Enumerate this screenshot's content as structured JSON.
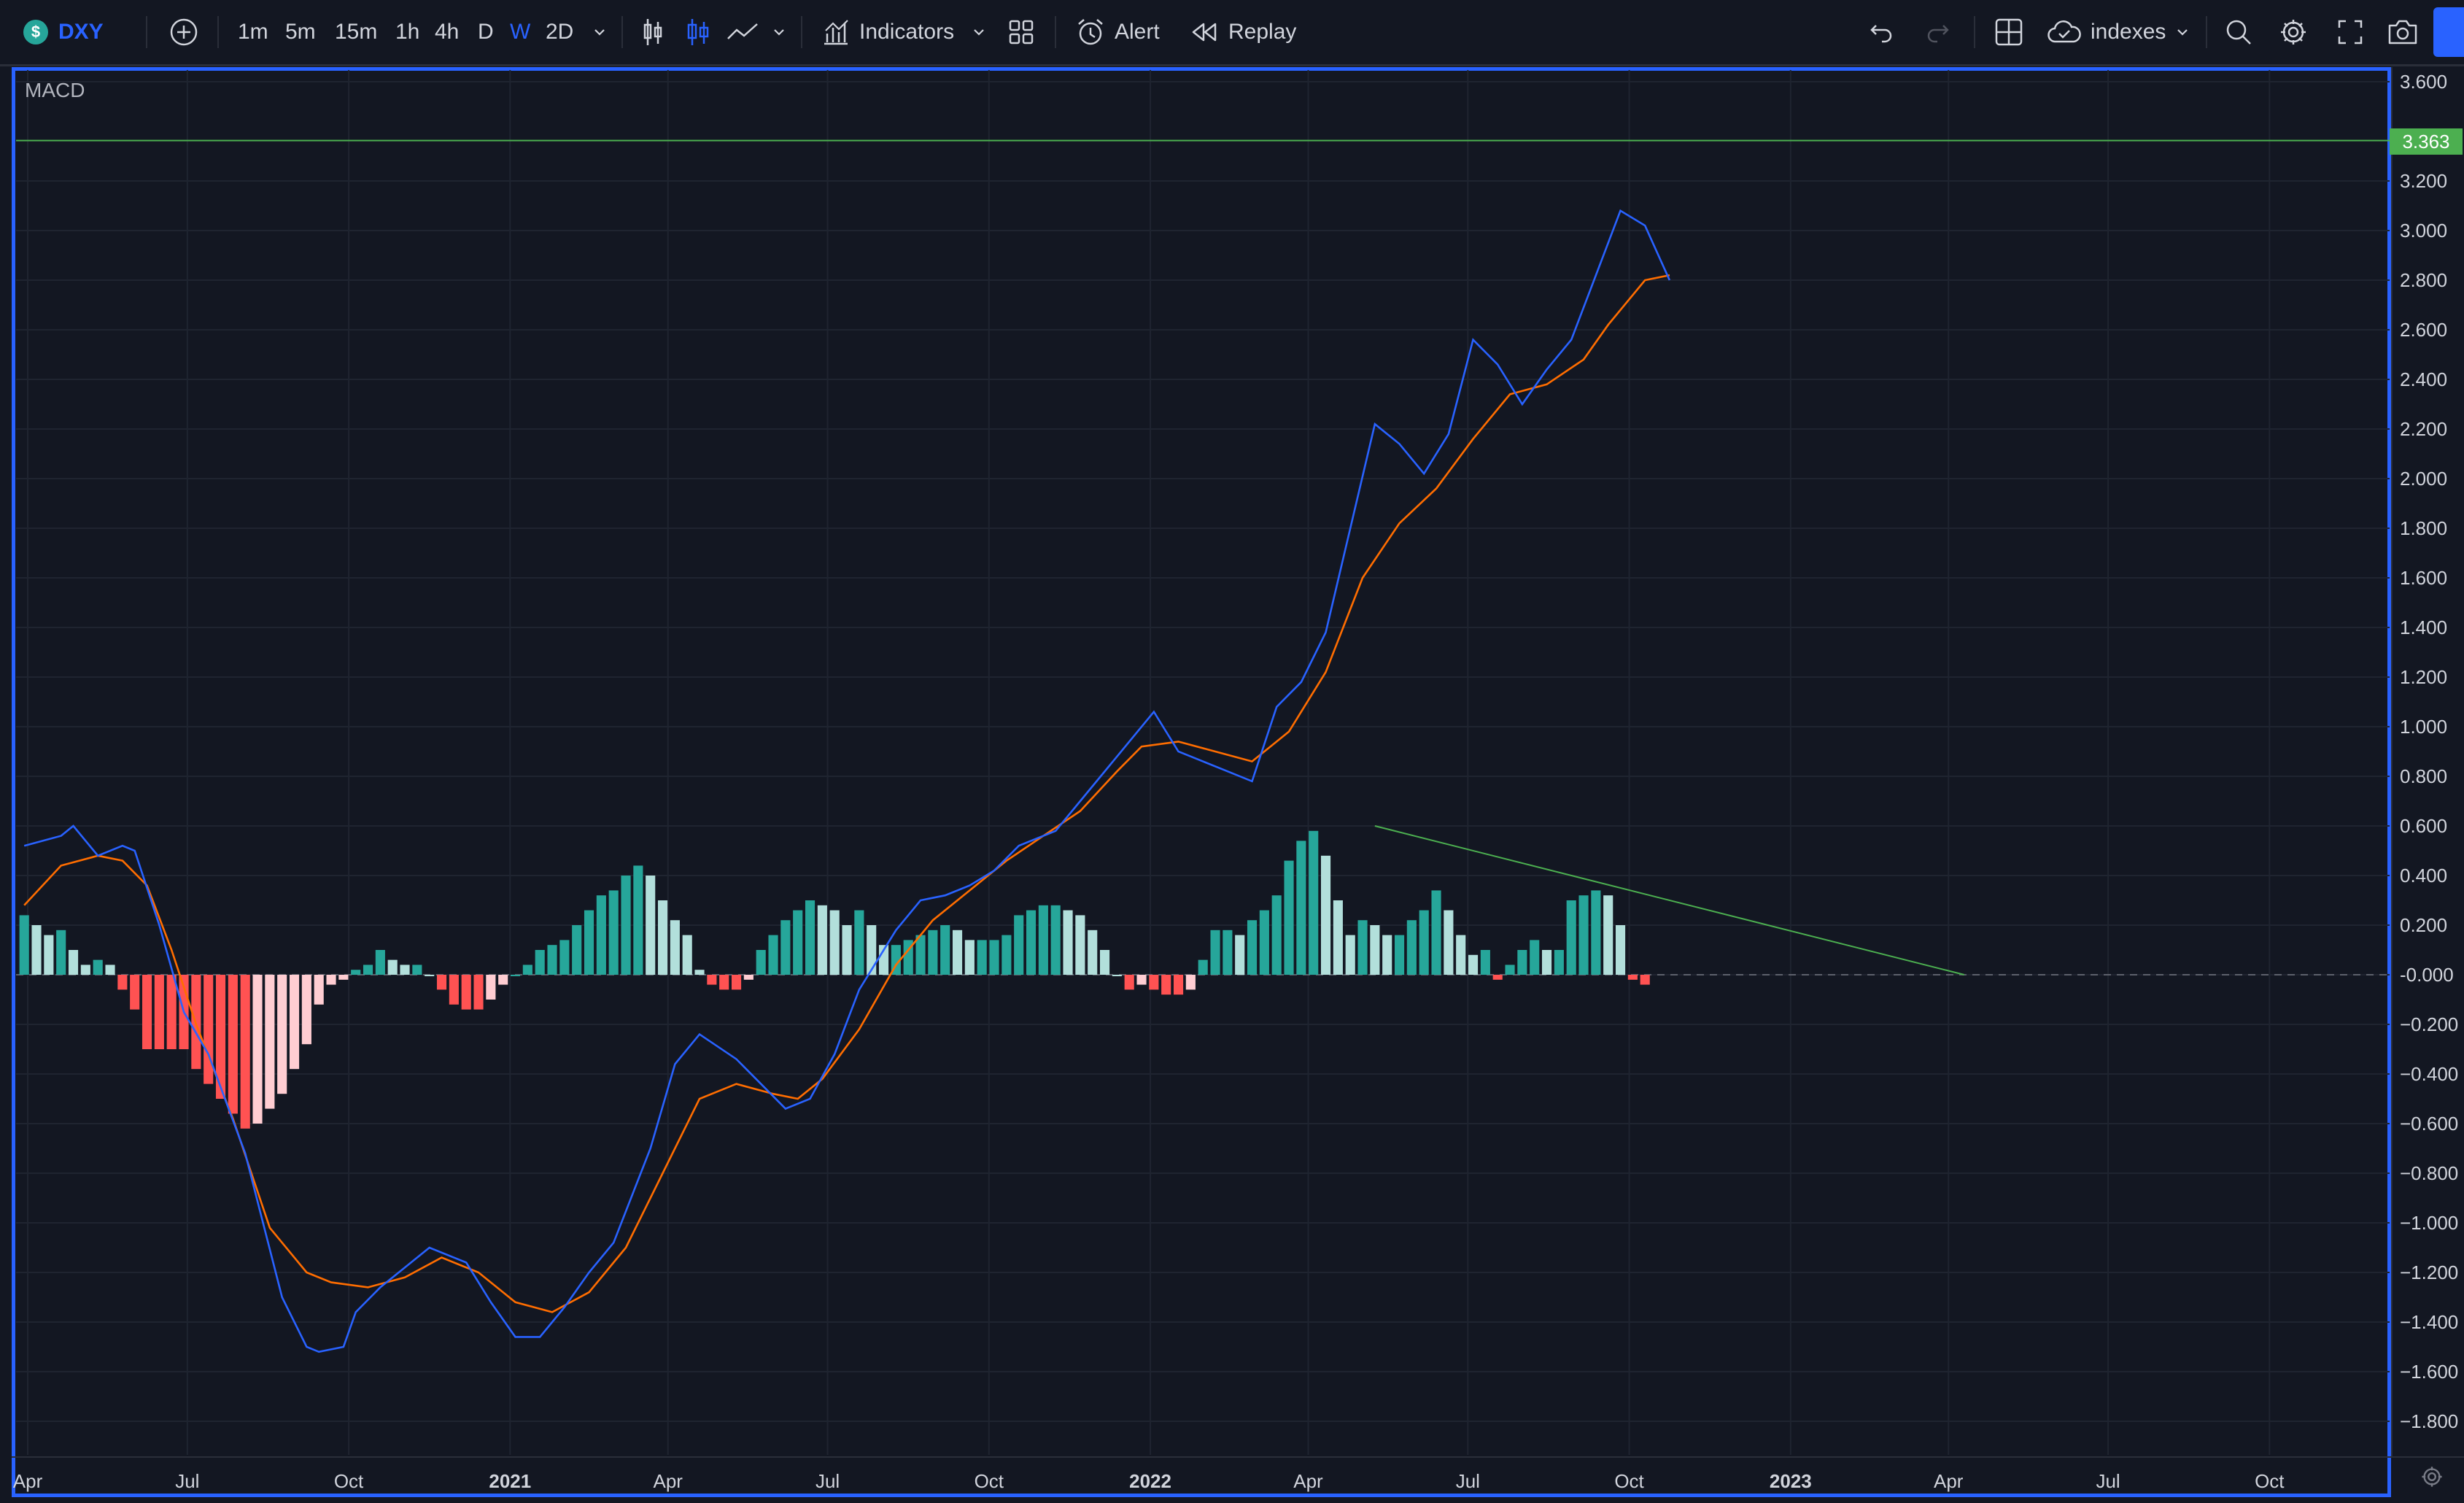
{
  "toolbar": {
    "symbol": "DXY",
    "timeframes": [
      "1m",
      "5m",
      "15m",
      "1h",
      "4h",
      "D",
      "W",
      "2D"
    ],
    "active_timeframe": "W",
    "indicators_label": "Indicators",
    "alert_label": "Alert",
    "replay_label": "Replay",
    "layout_label": "indexes"
  },
  "pane": {
    "indicator_name": "MACD",
    "price_tag": "3.363"
  },
  "y_axis": {
    "labels": [
      "3.600",
      "3.200",
      "3.000",
      "2.800",
      "2.600",
      "2.400",
      "2.200",
      "2.000",
      "1.800",
      "1.600",
      "1.400",
      "1.200",
      "1.000",
      "0.800",
      "0.600",
      "0.400",
      "0.200",
      "-0.000",
      "−0.200",
      "−0.400",
      "−0.600",
      "−0.800",
      "−1.000",
      "−1.200",
      "−1.400",
      "−1.600",
      "−1.800"
    ]
  },
  "x_axis": {
    "labels": [
      {
        "text": "Apr",
        "year": false
      },
      {
        "text": "Jul",
        "year": false
      },
      {
        "text": "Oct",
        "year": false
      },
      {
        "text": "2021",
        "year": true
      },
      {
        "text": "Apr",
        "year": false
      },
      {
        "text": "Jul",
        "year": false
      },
      {
        "text": "Oct",
        "year": false
      },
      {
        "text": "2022",
        "year": true
      },
      {
        "text": "Apr",
        "year": false
      },
      {
        "text": "Jul",
        "year": false
      },
      {
        "text": "Oct",
        "year": false
      },
      {
        "text": "2023",
        "year": true
      },
      {
        "text": "Apr",
        "year": false
      },
      {
        "text": "Jul",
        "year": false
      },
      {
        "text": "Oct",
        "year": false
      }
    ]
  },
  "chart_data": {
    "type": "line",
    "indicator": "MACD",
    "ylim": [
      -1.9,
      3.65
    ],
    "x_range": [
      "2020-04-01",
      "2023-12-01"
    ],
    "horizontal_line": 3.363,
    "macd": [
      [
        "2020-03-30",
        0.52
      ],
      [
        "2020-04-20",
        0.56
      ],
      [
        "2020-04-27",
        0.6
      ],
      [
        "2020-05-11",
        0.48
      ],
      [
        "2020-05-25",
        0.52
      ],
      [
        "2020-06-01",
        0.5
      ],
      [
        "2020-06-15",
        0.2
      ],
      [
        "2020-06-29",
        -0.15
      ],
      [
        "2020-07-13",
        -0.32
      ],
      [
        "2020-08-03",
        -0.72
      ],
      [
        "2020-08-24",
        -1.3
      ],
      [
        "2020-09-07",
        -1.5
      ],
      [
        "2020-09-14",
        -1.52
      ],
      [
        "2020-09-28",
        -1.5
      ],
      [
        "2020-10-05",
        -1.36
      ],
      [
        "2020-10-19",
        -1.26
      ],
      [
        "2020-11-02",
        -1.18
      ],
      [
        "2020-11-16",
        -1.1
      ],
      [
        "2020-12-07",
        -1.16
      ],
      [
        "2020-12-21",
        -1.32
      ],
      [
        "2021-01-04",
        -1.46
      ],
      [
        "2021-01-18",
        -1.46
      ],
      [
        "2021-02-01",
        -1.34
      ],
      [
        "2021-02-15",
        -1.2
      ],
      [
        "2021-03-01",
        -1.08
      ],
      [
        "2021-03-22",
        -0.7
      ],
      [
        "2021-04-05",
        -0.36
      ],
      [
        "2021-04-19",
        -0.24
      ],
      [
        "2021-05-10",
        -0.34
      ],
      [
        "2021-05-24",
        -0.44
      ],
      [
        "2021-06-07",
        -0.54
      ],
      [
        "2021-06-21",
        -0.5
      ],
      [
        "2021-07-05",
        -0.32
      ],
      [
        "2021-07-19",
        -0.06
      ],
      [
        "2021-08-09",
        0.18
      ],
      [
        "2021-08-23",
        0.3
      ],
      [
        "2021-09-06",
        0.32
      ],
      [
        "2021-09-20",
        0.36
      ],
      [
        "2021-10-04",
        0.42
      ],
      [
        "2021-10-18",
        0.52
      ],
      [
        "2021-11-08",
        0.58
      ],
      [
        "2021-11-22",
        0.7
      ],
      [
        "2021-12-13",
        0.88
      ],
      [
        "2022-01-03",
        1.06
      ],
      [
        "2022-01-17",
        0.9
      ],
      [
        "2022-01-31",
        0.86
      ],
      [
        "2022-02-14",
        0.82
      ],
      [
        "2022-02-28",
        0.78
      ],
      [
        "2022-03-14",
        1.08
      ],
      [
        "2022-03-28",
        1.18
      ],
      [
        "2022-04-11",
        1.38
      ],
      [
        "2022-04-25",
        1.8
      ],
      [
        "2022-05-09",
        2.22
      ],
      [
        "2022-05-23",
        2.14
      ],
      [
        "2022-06-06",
        2.02
      ],
      [
        "2022-06-20",
        2.18
      ],
      [
        "2022-07-04",
        2.56
      ],
      [
        "2022-07-18",
        2.46
      ],
      [
        "2022-08-01",
        2.3
      ],
      [
        "2022-08-15",
        2.44
      ],
      [
        "2022-08-29",
        2.56
      ],
      [
        "2022-09-12",
        2.82
      ],
      [
        "2022-09-26",
        3.08
      ],
      [
        "2022-10-10",
        3.02
      ],
      [
        "2022-10-24",
        2.8
      ]
    ],
    "signal": [
      [
        "2020-03-30",
        0.28
      ],
      [
        "2020-04-20",
        0.44
      ],
      [
        "2020-05-11",
        0.48
      ],
      [
        "2020-05-25",
        0.46
      ],
      [
        "2020-06-08",
        0.36
      ],
      [
        "2020-06-22",
        0.1
      ],
      [
        "2020-07-06",
        -0.2
      ],
      [
        "2020-07-27",
        -0.58
      ],
      [
        "2020-08-17",
        -1.02
      ],
      [
        "2020-09-07",
        -1.2
      ],
      [
        "2020-09-21",
        -1.24
      ],
      [
        "2020-10-12",
        -1.26
      ],
      [
        "2020-11-02",
        -1.22
      ],
      [
        "2020-11-23",
        -1.14
      ],
      [
        "2020-12-14",
        -1.2
      ],
      [
        "2021-01-04",
        -1.32
      ],
      [
        "2021-01-25",
        -1.36
      ],
      [
        "2021-02-15",
        -1.28
      ],
      [
        "2021-03-08",
        -1.1
      ],
      [
        "2021-03-29",
        -0.8
      ],
      [
        "2021-04-19",
        -0.5
      ],
      [
        "2021-05-10",
        -0.44
      ],
      [
        "2021-05-31",
        -0.48
      ],
      [
        "2021-06-14",
        -0.5
      ],
      [
        "2021-06-28",
        -0.42
      ],
      [
        "2021-07-19",
        -0.22
      ],
      [
        "2021-08-09",
        0.04
      ],
      [
        "2021-08-30",
        0.22
      ],
      [
        "2021-09-20",
        0.34
      ],
      [
        "2021-10-11",
        0.46
      ],
      [
        "2021-11-01",
        0.56
      ],
      [
        "2021-11-22",
        0.66
      ],
      [
        "2021-12-13",
        0.82
      ],
      [
        "2021-12-27",
        0.92
      ],
      [
        "2022-01-17",
        0.94
      ],
      [
        "2022-02-07",
        0.9
      ],
      [
        "2022-02-28",
        0.86
      ],
      [
        "2022-03-21",
        0.98
      ],
      [
        "2022-04-11",
        1.22
      ],
      [
        "2022-05-02",
        1.6
      ],
      [
        "2022-05-23",
        1.82
      ],
      [
        "2022-06-13",
        1.96
      ],
      [
        "2022-07-04",
        2.16
      ],
      [
        "2022-07-25",
        2.34
      ],
      [
        "2022-08-15",
        2.38
      ],
      [
        "2022-09-05",
        2.48
      ],
      [
        "2022-09-19",
        2.62
      ],
      [
        "2022-10-10",
        2.8
      ],
      [
        "2022-10-24",
        2.82
      ]
    ],
    "histogram_start": "2020-03-30",
    "histogram_interval_days": 7,
    "histogram": [
      0.24,
      0.2,
      0.16,
      0.18,
      0.1,
      0.04,
      0.06,
      0.04,
      -0.06,
      -0.14,
      -0.3,
      -0.3,
      -0.3,
      -0.3,
      -0.38,
      -0.44,
      -0.5,
      -0.56,
      -0.62,
      -0.6,
      -0.54,
      -0.48,
      -0.38,
      -0.28,
      -0.12,
      -0.04,
      -0.02,
      0.02,
      0.04,
      0.1,
      0.06,
      0.04,
      0.04,
      0.0,
      -0.06,
      -0.12,
      -0.14,
      -0.14,
      -0.1,
      -0.04,
      0.0,
      0.04,
      0.1,
      0.12,
      0.14,
      0.2,
      0.26,
      0.32,
      0.34,
      0.4,
      0.44,
      0.4,
      0.3,
      0.22,
      0.16,
      0.02,
      -0.04,
      -0.06,
      -0.06,
      -0.02,
      0.1,
      0.16,
      0.22,
      0.26,
      0.3,
      0.28,
      0.26,
      0.2,
      0.26,
      0.2,
      0.12,
      0.12,
      0.14,
      0.16,
      0.18,
      0.2,
      0.18,
      0.14,
      0.14,
      0.14,
      0.16,
      0.24,
      0.26,
      0.28,
      0.28,
      0.26,
      0.24,
      0.18,
      0.1,
      0.0,
      -0.06,
      -0.04,
      -0.06,
      -0.08,
      -0.08,
      -0.06,
      0.06,
      0.18,
      0.18,
      0.16,
      0.22,
      0.26,
      0.32,
      0.46,
      0.54,
      0.58,
      0.48,
      0.3,
      0.16,
      0.22,
      0.2,
      0.16,
      0.16,
      0.22,
      0.26,
      0.34,
      0.26,
      0.16,
      0.08,
      0.1,
      -0.02,
      0.04,
      0.1,
      0.14,
      0.1,
      0.1,
      0.3,
      0.32,
      0.34,
      0.32,
      0.2,
      -0.02,
      -0.04
    ]
  }
}
